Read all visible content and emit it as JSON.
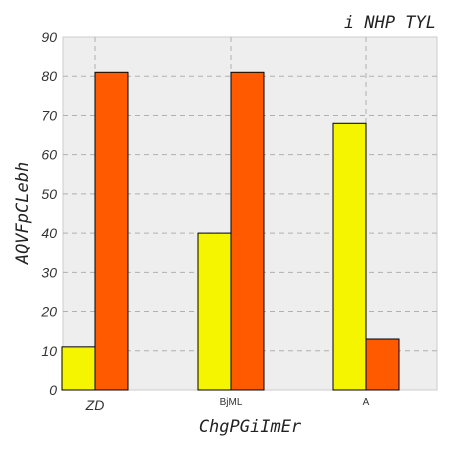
{
  "chart_data": {
    "type": "bar",
    "title": "i NHP TYL",
    "xlabel": "ChgPGiImEr",
    "ylabel": "AQVFpCLebh",
    "categories": [
      "ZD",
      "BjML",
      "A"
    ],
    "series": [
      {
        "values": [
          11,
          40,
          68
        ],
        "color": "#f5f500"
      },
      {
        "values": [
          81,
          81,
          13
        ],
        "color": "#ff5a00"
      }
    ],
    "ylim": [
      0,
      90
    ],
    "yticks": [
      0,
      10,
      20,
      30,
      40,
      50,
      60,
      70,
      80,
      90
    ],
    "grid": true,
    "legend": "none",
    "plot_background": "#eeeeee",
    "grid_color": "#b0b0b0"
  }
}
